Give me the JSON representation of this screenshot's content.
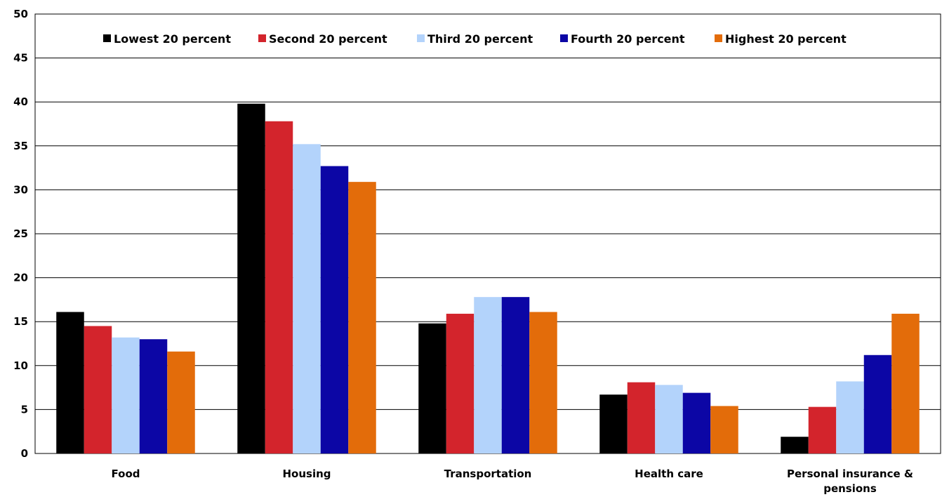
{
  "chart_data": {
    "type": "bar",
    "categories": [
      "Food",
      "Housing",
      "Transportation",
      "Health care",
      "Personal insurance & pensions"
    ],
    "series": [
      {
        "name": "Lowest 20 percent",
        "color": "#000000",
        "values": [
          16.1,
          39.8,
          14.8,
          6.7,
          1.9
        ]
      },
      {
        "name": "Second 20 percent",
        "color": "#d3242c",
        "values": [
          14.5,
          37.8,
          15.9,
          8.1,
          5.3
        ]
      },
      {
        "name": "Third 20 percent",
        "color": "#b3d3fb",
        "values": [
          13.2,
          35.2,
          17.8,
          7.8,
          8.2
        ]
      },
      {
        "name": "Fourth 20 percent",
        "color": "#0c06a5",
        "values": [
          13.0,
          32.7,
          17.8,
          6.9,
          11.2
        ]
      },
      {
        "name": "Highest 20 percent",
        "color": "#e36c0a",
        "values": [
          11.6,
          30.9,
          16.1,
          5.4,
          15.9
        ]
      }
    ],
    "ylim": [
      0,
      50
    ],
    "yticks": [
      0,
      5,
      10,
      15,
      20,
      25,
      30,
      35,
      40,
      45,
      50
    ],
    "title": "",
    "xlabel": "",
    "ylabel": "",
    "grid": true,
    "legend_position": "top"
  }
}
